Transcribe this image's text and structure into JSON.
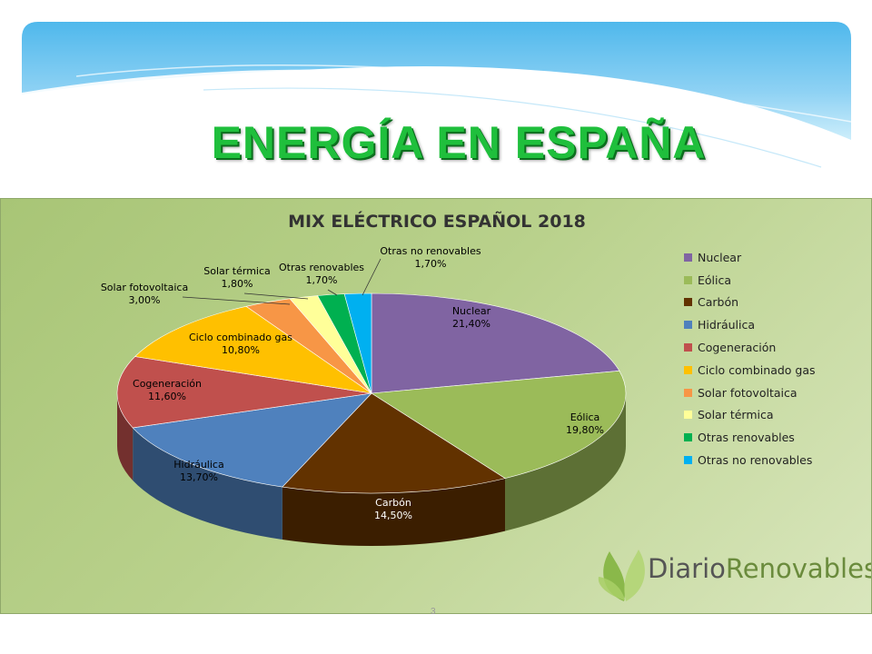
{
  "slide": {
    "title": "ENERGÍA EN ESPAÑA",
    "page_number": "3"
  },
  "logo": {
    "part1": "Diario",
    "part2": "Renovables"
  },
  "chart_data": {
    "type": "pie",
    "title": "MIX ELÉCTRICO ESPAÑOL 2018",
    "legend_position": "right",
    "slices": [
      {
        "label": "Nuclear",
        "value": 21.4,
        "value_label": "21,40%",
        "color": "#8064a2"
      },
      {
        "label": "Eólica",
        "value": 19.8,
        "value_label": "19,80%",
        "color": "#9bbb59"
      },
      {
        "label": "Carbón",
        "value": 14.5,
        "value_label": "14,50%",
        "color": "#623200"
      },
      {
        "label": "Hidráulica",
        "value": 13.7,
        "value_label": "13,70%",
        "color": "#4f81bd"
      },
      {
        "label": "Cogeneración",
        "value": 11.6,
        "value_label": "11,60%",
        "color": "#c0504d"
      },
      {
        "label": "Ciclo combinado gas",
        "value": 10.8,
        "value_label": "10,80%",
        "color": "#ffc000"
      },
      {
        "label": "Solar fotovoltaica",
        "value": 3.0,
        "value_label": "3,00%",
        "color": "#f79646"
      },
      {
        "label": "Solar térmica",
        "value": 1.8,
        "value_label": "1,80%",
        "color": "#ffff99"
      },
      {
        "label": "Otras renovables",
        "value": 1.7,
        "value_label": "1,70%",
        "color": "#00b050"
      },
      {
        "label": "Otras no renovables",
        "value": 1.7,
        "value_label": "1,70%",
        "color": "#00b0f0"
      }
    ]
  }
}
